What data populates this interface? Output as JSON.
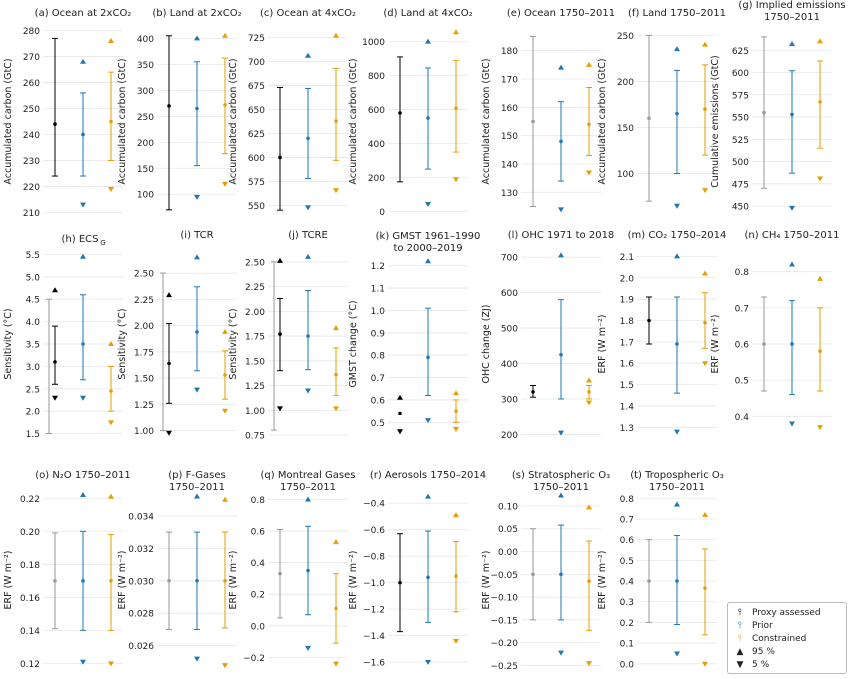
{
  "legend": {
    "items": [
      {
        "label": "Proxy assessed",
        "color": "#000000",
        "kind": "errorbar"
      },
      {
        "label": "Prior",
        "color": "#1f77b4",
        "kind": "errorbar"
      },
      {
        "label": "Constrained",
        "color": "#e69f00",
        "kind": "errorbar"
      },
      {
        "label": "95 %",
        "color": "#000000",
        "kind": "triangle-up"
      },
      {
        "label": "5 %",
        "color": "#000000",
        "kind": "triangle-down"
      }
    ]
  },
  "chart_data": [
    {
      "type": "errorbar",
      "title": [
        "(a) Ocean at 2xCO₂"
      ],
      "ylabel": "Accumulated carbon (GtC)",
      "ylim": [
        209,
        281
      ],
      "ticks": [
        210,
        220,
        230,
        240,
        250,
        260,
        270,
        280
      ],
      "series": [
        {
          "name": "Proxy assessed",
          "color": "#000000",
          "mean": 244,
          "low": 224,
          "high": 277,
          "p95": null,
          "p5": null
        },
        {
          "name": "Prior",
          "color": "#1f77b4",
          "mean": 240,
          "low": 224,
          "high": 256,
          "p95": 268,
          "p5": 213
        },
        {
          "name": "Constrained",
          "color": "#e69f00",
          "mean": 245,
          "low": 230,
          "high": 264,
          "p95": 276,
          "p5": 219
        }
      ]
    },
    {
      "type": "errorbar",
      "title": [
        "(b) Land at 2xCO₂"
      ],
      "ylabel": "Accumulated carbon (GtC)",
      "ylim": [
        60,
        420
      ],
      "ticks": [
        100,
        150,
        200,
        250,
        300,
        350,
        400
      ],
      "series": [
        {
          "name": "Proxy assessed",
          "color": "#000000",
          "mean": 270,
          "low": 70,
          "high": 405,
          "p95": null,
          "p5": null
        },
        {
          "name": "Prior",
          "color": "#1f77b4",
          "mean": 265,
          "low": 155,
          "high": 355,
          "p95": 400,
          "p5": 95
        },
        {
          "name": "Constrained",
          "color": "#e69f00",
          "mean": 272,
          "low": 178,
          "high": 362,
          "p95": 405,
          "p5": 120
        }
      ]
    },
    {
      "type": "errorbar",
      "title": [
        "(c) Ocean at 4xCO₂"
      ],
      "ylabel": "Accumulated carbon (GtC)",
      "ylim": [
        540,
        735
      ],
      "ticks": [
        550,
        575,
        600,
        625,
        650,
        675,
        700,
        725
      ],
      "series": [
        {
          "name": "Proxy assessed",
          "color": "#000000",
          "mean": 600,
          "low": 545,
          "high": 673,
          "p95": null,
          "p5": null
        },
        {
          "name": "Prior",
          "color": "#1f77b4",
          "mean": 620,
          "low": 578,
          "high": 672,
          "p95": 706,
          "p5": 548
        },
        {
          "name": "Constrained",
          "color": "#e69f00",
          "mean": 638,
          "low": 597,
          "high": 693,
          "p95": 727,
          "p5": 566
        }
      ]
    },
    {
      "type": "errorbar",
      "title": [
        "(d) Land at 4xCO₂"
      ],
      "ylabel": "Accumulated carbon (GtC)",
      "ylim": [
        -20,
        1080
      ],
      "ticks": [
        0,
        200,
        400,
        600,
        800,
        1000
      ],
      "series": [
        {
          "name": "Proxy assessed",
          "color": "#000000",
          "mean": 580,
          "low": 175,
          "high": 910,
          "p95": null,
          "p5": null
        },
        {
          "name": "Prior",
          "color": "#1f77b4",
          "mean": 550,
          "low": 250,
          "high": 845,
          "p95": 1000,
          "p5": 45
        },
        {
          "name": "Constrained",
          "color": "#e69f00",
          "mean": 608,
          "low": 350,
          "high": 890,
          "p95": 1055,
          "p5": 190
        }
      ]
    },
    {
      "type": "errorbar",
      "title": [
        "(e) Ocean 1750–2011"
      ],
      "ylabel": "Accumulated carbon (GtC)",
      "ylim": [
        122,
        188
      ],
      "ticks": [
        130,
        140,
        150,
        160,
        170,
        180
      ],
      "series": [
        {
          "name": "Proxy assessed",
          "color": "#000000",
          "mean": 155,
          "low": 125,
          "high": 185,
          "p95": null,
          "p5": null,
          "faded": true
        },
        {
          "name": "Prior",
          "color": "#1f77b4",
          "mean": 148,
          "low": 134,
          "high": 162,
          "p95": 174,
          "p5": 124
        },
        {
          "name": "Constrained",
          "color": "#e69f00",
          "mean": 154,
          "low": 143,
          "high": 167,
          "p95": 175,
          "p5": 137
        }
      ]
    },
    {
      "type": "errorbar",
      "title": [
        "(f) Land 1750–2011"
      ],
      "ylabel": "Accumulated carbon (GtC)",
      "ylim": [
        55,
        258
      ],
      "ticks": [
        100,
        150,
        200,
        250
      ],
      "series": [
        {
          "name": "Proxy assessed",
          "color": "#000000",
          "mean": 160,
          "low": 70,
          "high": 250,
          "p95": null,
          "p5": null,
          "faded": true
        },
        {
          "name": "Prior",
          "color": "#1f77b4",
          "mean": 165,
          "low": 100,
          "high": 212,
          "p95": 235,
          "p5": 65
        },
        {
          "name": "Constrained",
          "color": "#e69f00",
          "mean": 170,
          "low": 120,
          "high": 218,
          "p95": 240,
          "p5": 82
        }
      ]
    },
    {
      "type": "errorbar",
      "title": [
        "(g) Implied emissions",
        "1750–2011"
      ],
      "ylabel": "Cumulative emissions (GtC)",
      "ylim": [
        440,
        650
      ],
      "ticks": [
        450,
        475,
        500,
        525,
        550,
        575,
        600,
        625
      ],
      "series": [
        {
          "name": "Proxy assessed",
          "color": "#000000",
          "mean": 555,
          "low": 470,
          "high": 640,
          "p95": null,
          "p5": null,
          "faded": true
        },
        {
          "name": "Prior",
          "color": "#1f77b4",
          "mean": 553,
          "low": 487,
          "high": 602,
          "p95": 632,
          "p5": 448
        },
        {
          "name": "Constrained",
          "color": "#e69f00",
          "mean": 567,
          "low": 515,
          "high": 613,
          "p95": 635,
          "p5": 481
        }
      ]
    },
    {
      "type": "errorbar",
      "title": [
        "(h) ECS",
        "G"
      ],
      "ylabel": "Sensitivity (°C)",
      "ylim": [
        1.4,
        5.6
      ],
      "ticks": [
        1.5,
        2.0,
        2.5,
        3.0,
        3.5,
        4.0,
        4.5,
        5.0,
        5.5
      ],
      "series": [
        {
          "name": "Proxy assessed",
          "color": "#000000",
          "mean": 3.1,
          "low": 2.6,
          "high": 3.9,
          "p95": 4.7,
          "p5": 2.3
        },
        {
          "name": "Prior",
          "color": "#1f77b4",
          "mean": 3.5,
          "low": 2.7,
          "high": 4.6,
          "p95": 5.45,
          "p5": 2.3
        },
        {
          "name": "Constrained",
          "color": "#e69f00",
          "mean": 2.45,
          "low": 2.0,
          "high": 3.0,
          "p95": 3.5,
          "p5": 1.75
        }
      ],
      "extra": [
        {
          "name": "Proxy assessed range",
          "color": "#999999",
          "low": 1.5,
          "high": 4.5
        }
      ]
    },
    {
      "type": "errorbar",
      "title": [
        "(i) TCR"
      ],
      "ylabel": "Sensitivity (°C)",
      "ylim": [
        0.93,
        2.72
      ],
      "ticks": [
        1.0,
        1.25,
        1.5,
        1.75,
        2.0,
        2.25,
        2.5
      ],
      "series": [
        {
          "name": "Proxy assessed",
          "color": "#000000",
          "mean": 1.64,
          "low": 1.26,
          "high": 2.02,
          "p95": 2.29,
          "p5": 0.98
        },
        {
          "name": "Prior",
          "color": "#1f77b4",
          "mean": 1.94,
          "low": 1.57,
          "high": 2.37,
          "p95": 2.65,
          "p5": 1.39
        },
        {
          "name": "Constrained",
          "color": "#e69f00",
          "mean": 1.53,
          "low": 1.3,
          "high": 1.76,
          "p95": 1.94,
          "p5": 1.19
        }
      ],
      "extra": [
        {
          "name": "Proxy assessed range",
          "color": "#999999",
          "low": 1.0,
          "high": 2.5
        }
      ]
    },
    {
      "type": "errorbar",
      "title": [
        "(j) TCRE"
      ],
      "ylabel": "Sensitivity (°C)",
      "ylim": [
        0.72,
        2.62
      ],
      "ticks": [
        0.75,
        1.0,
        1.25,
        1.5,
        1.75,
        2.0,
        2.25,
        2.5
      ],
      "series": [
        {
          "name": "Proxy assessed",
          "color": "#000000",
          "mean": 1.77,
          "low": 1.4,
          "high": 2.13,
          "p95": 2.51,
          "p5": 1.02
        },
        {
          "name": "Prior",
          "color": "#1f77b4",
          "mean": 1.75,
          "low": 1.41,
          "high": 2.21,
          "p95": 2.55,
          "p5": 1.2
        },
        {
          "name": "Constrained",
          "color": "#e69f00",
          "mean": 1.36,
          "low": 1.15,
          "high": 1.63,
          "p95": 1.83,
          "p5": 1.02
        }
      ],
      "extra": [
        {
          "name": "Proxy assessed range",
          "color": "#999999",
          "low": 0.8,
          "high": 2.5
        }
      ]
    },
    {
      "type": "errorbar",
      "title": [
        "(k) GMST 1961–1990",
        "to 2000–2019"
      ],
      "ylabel": "GMST change (°C)",
      "ylim": [
        0.43,
        1.27
      ],
      "ticks": [
        0.5,
        0.6,
        0.7,
        0.8,
        0.9,
        1.0,
        1.1,
        1.2
      ],
      "series": [
        {
          "name": "Proxy assessed",
          "color": "#000000",
          "mean": 0.54,
          "low": null,
          "high": null,
          "p95": 0.61,
          "p5": 0.46
        },
        {
          "name": "Prior",
          "color": "#1f77b4",
          "mean": 0.79,
          "low": 0.62,
          "high": 1.01,
          "p95": 1.22,
          "p5": 0.51
        },
        {
          "name": "Constrained",
          "color": "#e69f00",
          "mean": 0.55,
          "low": 0.5,
          "high": 0.6,
          "p95": 0.63,
          "p5": 0.47
        }
      ]
    },
    {
      "type": "errorbar",
      "title": [
        "(l) OHC 1971 to 2018"
      ],
      "ylabel": "OHC change (ZJ)",
      "ylim": [
        190,
        720
      ],
      "ticks": [
        200,
        300,
        400,
        500,
        600,
        700
      ],
      "series": [
        {
          "name": "Proxy assessed",
          "color": "#000000",
          "mean": 320,
          "low": 305,
          "high": 338,
          "p95": null,
          "p5": null
        },
        {
          "name": "Prior",
          "color": "#1f77b4",
          "mean": 425,
          "low": 300,
          "high": 580,
          "p95": 705,
          "p5": 205
        },
        {
          "name": "Constrained",
          "color": "#e69f00",
          "mean": 320,
          "low": 300,
          "high": 338,
          "p95": 352,
          "p5": 290
        }
      ]
    },
    {
      "type": "errorbar",
      "title": [
        "(m) CO₂ 1750–2014"
      ],
      "ylabel": "ERF (W m⁻²)",
      "ylim": [
        1.25,
        2.13
      ],
      "ticks": [
        1.3,
        1.4,
        1.5,
        1.6,
        1.7,
        1.8,
        1.9,
        2.0,
        2.1
      ],
      "series": [
        {
          "name": "Proxy assessed",
          "color": "#000000",
          "mean": 1.8,
          "low": 1.69,
          "high": 1.91,
          "p95": null,
          "p5": null
        },
        {
          "name": "Prior",
          "color": "#1f77b4",
          "mean": 1.69,
          "low": 1.46,
          "high": 1.91,
          "p95": 2.1,
          "p5": 1.28
        },
        {
          "name": "Constrained",
          "color": "#e69f00",
          "mean": 1.79,
          "low": 1.67,
          "high": 1.93,
          "p95": 2.02,
          "p5": 1.6
        }
      ]
    },
    {
      "type": "errorbar",
      "title": [
        "(n) CH₄ 1750–2011"
      ],
      "ylabel": "ERF (W m⁻²)",
      "ylim": [
        0.34,
        0.86
      ],
      "ticks": [
        0.4,
        0.5,
        0.6,
        0.7,
        0.8
      ],
      "series": [
        {
          "name": "Proxy assessed",
          "color": "#000000",
          "mean": 0.6,
          "low": 0.47,
          "high": 0.73,
          "p95": null,
          "p5": null,
          "faded": true
        },
        {
          "name": "Prior",
          "color": "#1f77b4",
          "mean": 0.6,
          "low": 0.46,
          "high": 0.72,
          "p95": 0.82,
          "p5": 0.38
        },
        {
          "name": "Constrained",
          "color": "#e69f00",
          "mean": 0.58,
          "low": 0.47,
          "high": 0.7,
          "p95": 0.78,
          "p5": 0.37
        }
      ]
    },
    {
      "type": "errorbar",
      "title": [
        "(o) N₂O 1750–2011"
      ],
      "ylabel": "ERF (W m⁻²)",
      "ylim": [
        0.116,
        0.225
      ],
      "ticks": [
        0.12,
        0.14,
        0.16,
        0.18,
        0.2,
        0.22
      ],
      "series": [
        {
          "name": "Proxy assessed",
          "color": "#000000",
          "mean": 0.17,
          "low": 0.141,
          "high": 0.199,
          "p95": null,
          "p5": null,
          "faded": true
        },
        {
          "name": "Prior",
          "color": "#1f77b4",
          "mean": 0.17,
          "low": 0.14,
          "high": 0.2,
          "p95": 0.222,
          "p5": 0.121
        },
        {
          "name": "Constrained",
          "color": "#e69f00",
          "mean": 0.17,
          "low": 0.14,
          "high": 0.198,
          "p95": 0.221,
          "p5": 0.12
        }
      ]
    },
    {
      "type": "errorbar",
      "title": [
        "(p) F-Gases",
        "1750–2011"
      ],
      "ylabel": "ERF (W m⁻²)",
      "ylim": [
        0.0245,
        0.0356
      ],
      "ticks": [
        0.026,
        0.028,
        0.03,
        0.032,
        0.034
      ],
      "series": [
        {
          "name": "Proxy assessed",
          "color": "#000000",
          "mean": 0.03,
          "low": 0.027,
          "high": 0.033,
          "p95": null,
          "p5": null,
          "faded": true
        },
        {
          "name": "Prior",
          "color": "#1f77b4",
          "mean": 0.03,
          "low": 0.027,
          "high": 0.033,
          "p95": 0.0352,
          "p5": 0.0252
        },
        {
          "name": "Constrained",
          "color": "#e69f00",
          "mean": 0.03,
          "low": 0.0271,
          "high": 0.033,
          "p95": 0.035,
          "p5": 0.0248
        }
      ]
    },
    {
      "type": "errorbar",
      "title": [
        "(q) Montreal Gases",
        "1750–2011"
      ],
      "ylabel": "ERF (W m⁻²)",
      "ylim": [
        -0.28,
        0.86
      ],
      "ticks": [
        -0.2,
        0.0,
        0.2,
        0.4,
        0.6,
        0.8
      ],
      "series": [
        {
          "name": "Proxy assessed",
          "color": "#000000",
          "mean": 0.33,
          "low": 0.05,
          "high": 0.61,
          "p95": null,
          "p5": null,
          "faded": true
        },
        {
          "name": "Prior",
          "color": "#1f77b4",
          "mean": 0.35,
          "low": 0.07,
          "high": 0.63,
          "p95": 0.8,
          "p5": -0.14
        },
        {
          "name": "Constrained",
          "color": "#e69f00",
          "mean": 0.11,
          "low": -0.11,
          "high": 0.33,
          "p95": 0.53,
          "p5": -0.24
        }
      ]
    },
    {
      "type": "errorbar",
      "title": [
        "(r) Aerosols 1750–2014"
      ],
      "ylabel": "ERF (W m⁻²)",
      "ylim": [
        -1.66,
        -0.3
      ],
      "ticks": [
        -1.6,
        -1.4,
        -1.2,
        -1.0,
        -0.8,
        -0.6,
        -0.4
      ],
      "series": [
        {
          "name": "Proxy assessed",
          "color": "#000000",
          "mean": -1.0,
          "low": -1.37,
          "high": -0.63,
          "p95": null,
          "p5": null
        },
        {
          "name": "Prior",
          "color": "#1f77b4",
          "mean": -0.96,
          "low": -1.3,
          "high": -0.61,
          "p95": -0.35,
          "p5": -1.6
        },
        {
          "name": "Constrained",
          "color": "#e69f00",
          "mean": -0.95,
          "low": -1.22,
          "high": -0.69,
          "p95": -0.49,
          "p5": -1.44
        }
      ]
    },
    {
      "type": "errorbar",
      "title": [
        "(s) Stratospheric O₃",
        "1750–2011"
      ],
      "ylabel": "ERF (W m⁻²)",
      "ylim": [
        -0.26,
        0.135
      ],
      "ticks": [
        -0.25,
        -0.2,
        -0.15,
        -0.1,
        -0.05,
        0.0,
        0.05,
        0.1
      ],
      "series": [
        {
          "name": "Proxy assessed",
          "color": "#000000",
          "mean": -0.05,
          "low": -0.15,
          "high": 0.05,
          "p95": null,
          "p5": null,
          "faded": true
        },
        {
          "name": "Prior",
          "color": "#1f77b4",
          "mean": -0.05,
          "low": -0.15,
          "high": 0.058,
          "p95": 0.123,
          "p5": -0.222
        },
        {
          "name": "Constrained",
          "color": "#e69f00",
          "mean": -0.065,
          "low": -0.173,
          "high": 0.023,
          "p95": 0.097,
          "p5": -0.245
        }
      ]
    },
    {
      "type": "errorbar",
      "title": [
        "(t) Tropospheric O₃",
        "1750–2011"
      ],
      "ylabel": "ERF (W m⁻²)",
      "ylim": [
        -0.03,
        0.84
      ],
      "ticks": [
        0.0,
        0.1,
        0.2,
        0.3,
        0.4,
        0.5,
        0.6,
        0.7,
        0.8
      ],
      "series": [
        {
          "name": "Proxy assessed",
          "color": "#000000",
          "mean": 0.4,
          "low": 0.2,
          "high": 0.6,
          "p95": null,
          "p5": null,
          "faded": true
        },
        {
          "name": "Prior",
          "color": "#1f77b4",
          "mean": 0.4,
          "low": 0.19,
          "high": 0.62,
          "p95": 0.77,
          "p5": 0.05
        },
        {
          "name": "Constrained",
          "color": "#e69f00",
          "mean": 0.365,
          "low": 0.14,
          "high": 0.555,
          "p95": 0.72,
          "p5": 0.0
        }
      ]
    }
  ]
}
